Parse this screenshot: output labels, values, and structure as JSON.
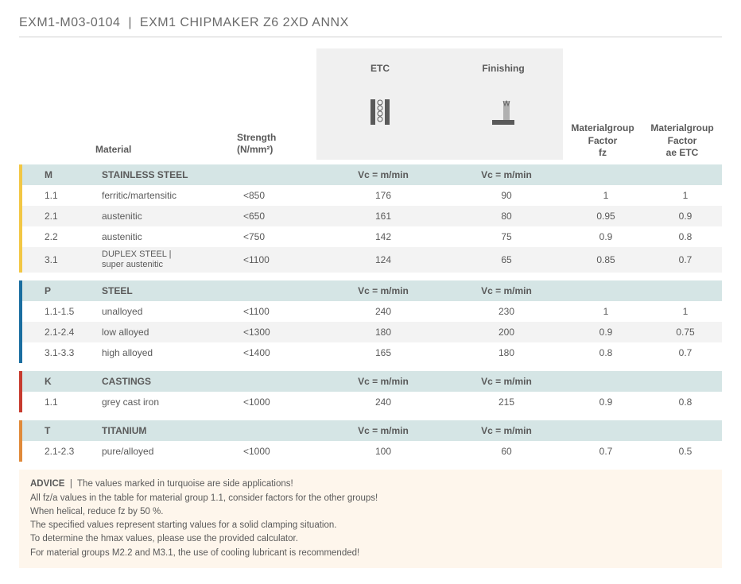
{
  "header": {
    "code": "EXM1-M03-0104",
    "sep": "|",
    "title": "EXM1 CHIPMAKER Z6 2XD ANNX"
  },
  "columns": {
    "material": "Material",
    "strength": "Strength",
    "strength_unit": "(N/mm²)",
    "etc": "ETC",
    "finishing": "Finishing",
    "factor_fz_l1": "Materialgroup",
    "factor_fz_l2": "Factor",
    "factor_fz_l3": "fz",
    "factor_ae_l1": "Materialgroup",
    "factor_ae_l2": "Factor",
    "factor_ae_l3": "ae ETC"
  },
  "vc_label": "Vc = m/min",
  "groups": [
    {
      "code": "M",
      "name": "STAINLESS STEEL",
      "color": "yellow",
      "rows": [
        {
          "id": "1.1",
          "material": "ferritic/martensitic",
          "strength": "<850",
          "etc": "176",
          "fin": "90",
          "fz": "1",
          "ae": "1"
        },
        {
          "id": "2.1",
          "material": "austenitic",
          "strength": "<650",
          "etc": "161",
          "fin": "80",
          "fz": "0.95",
          "ae": "0.9"
        },
        {
          "id": "2.2",
          "material": "austenitic",
          "strength": "<750",
          "etc": "142",
          "fin": "75",
          "fz": "0.9",
          "ae": "0.8"
        },
        {
          "id": "3.1",
          "material": "DUPLEX STEEL | super austenitic",
          "strength": "<1100",
          "etc": "124",
          "fin": "65",
          "fz": "0.85",
          "ae": "0.7"
        }
      ]
    },
    {
      "code": "P",
      "name": "STEEL",
      "color": "blue",
      "rows": [
        {
          "id": "1.1-1.5",
          "material": "unalloyed",
          "strength": "<1100",
          "etc": "240",
          "fin": "230",
          "fz": "1",
          "ae": "1"
        },
        {
          "id": "2.1-2.4",
          "material": "low alloyed",
          "strength": "<1300",
          "etc": "180",
          "fin": "200",
          "fz": "0.9",
          "ae": "0.75"
        },
        {
          "id": "3.1-3.3",
          "material": "high alloyed",
          "strength": "<1400",
          "etc": "165",
          "fin": "180",
          "fz": "0.8",
          "ae": "0.7"
        }
      ]
    },
    {
      "code": "K",
      "name": "CASTINGS",
      "color": "red",
      "rows": [
        {
          "id": "1.1",
          "material": "grey cast iron",
          "strength": "<1000",
          "etc": "240",
          "fin": "215",
          "fz": "0.9",
          "ae": "0.8"
        }
      ]
    },
    {
      "code": "T",
      "name": "TITANIUM",
      "color": "orange",
      "rows": [
        {
          "id": "2.1-2.3",
          "material": "pure/alloyed",
          "strength": "<1000",
          "etc": "100",
          "fin": "60",
          "fz": "0.7",
          "ae": "0.5"
        }
      ]
    }
  ],
  "advice": {
    "label": "ADVICE",
    "sep": "|",
    "lines": [
      "The values marked in turquoise are side applications!",
      "All fz/a values in the table for material group 1.1, consider factors for the other groups!",
      "When helical, reduce fz by 50 %.",
      "The specified values represent starting values for a solid clamping situation.",
      "To determine the hmax values, please use the provided calculator.",
      "For material groups M2.2 and M3.1, the use of cooling lubricant is recommended!"
    ]
  },
  "colors": {
    "text": "#5a5a5a",
    "group_header_bg": "#d5e5e5",
    "alt_row_bg": "#f3f3f3",
    "etc_bg": "#f0f0f0",
    "advice_bg": "#fef6ec",
    "yellow": "#f2c744",
    "blue": "#1a6ea0",
    "red": "#c73b2f",
    "orange": "#e08a3a"
  }
}
